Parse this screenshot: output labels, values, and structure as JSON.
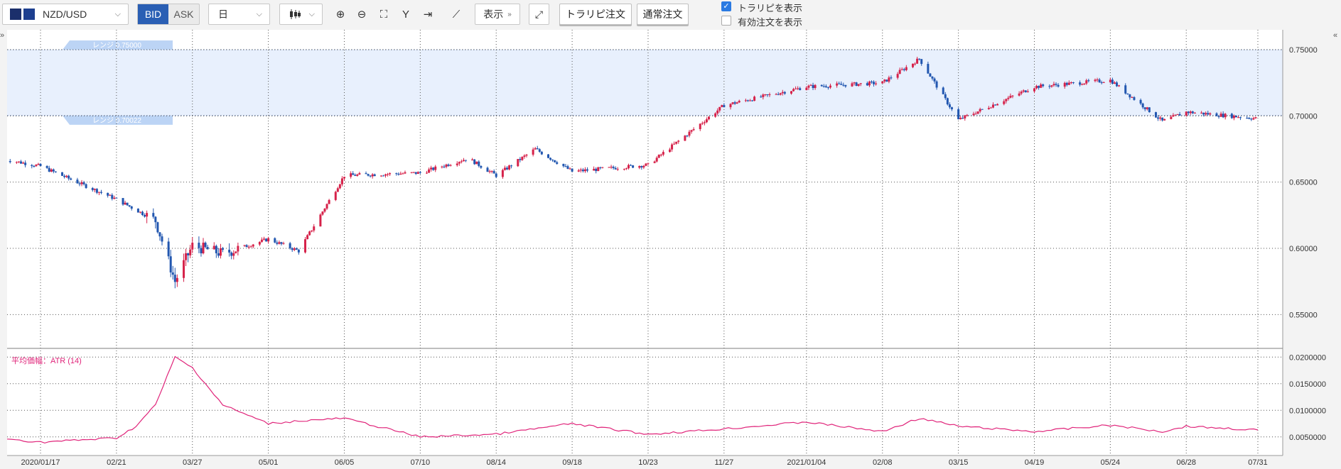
{
  "toolbar": {
    "symbol": "NZD/USD",
    "bid": "BID",
    "ask": "ASK",
    "period": "日",
    "display_label": "表示",
    "trailing_order": "トラリピ注文",
    "normal_order": "通常注文",
    "show_trailing": "トラリピを表示",
    "show_active_orders": "有効注文を表示",
    "show_trailing_checked": true,
    "show_active_orders_checked": false
  },
  "colors": {
    "up": "#d6224a",
    "down": "#2257b0",
    "range_fill": "#e8f0fd",
    "range_label_bg": "#bcd4f5",
    "atr": "#e0247a",
    "grid": "#555555"
  },
  "chart_data": [
    {
      "type": "candlestick",
      "range_band": {
        "upper": 0.75,
        "lower": 0.70022,
        "upper_label": "レンジ 0.75000",
        "lower_label": "レンジ 0.70022"
      },
      "ylim": [
        0.525,
        0.765
      ],
      "y_ticks": [
        "0.75000",
        "0.70000",
        "0.65000",
        "0.60000",
        "0.55000"
      ],
      "x_ticks": [
        "2020/01/17",
        "02/21",
        "03/27",
        "05/01",
        "06/05",
        "07/10",
        "08/14",
        "09/18",
        "10/23",
        "11/27",
        "2021/01/04",
        "02/08",
        "03/15",
        "04/19",
        "05/24",
        "06/28",
        "07/31"
      ],
      "close_path": {
        "x": [
          "2020/01/01",
          "2020/01/17",
          "2020/02/21",
          "2020/03/10",
          "2020/03/19",
          "2020/03/27",
          "2020/04/10",
          "2020/05/01",
          "2020/05/15",
          "2020/06/05",
          "2020/07/10",
          "2020/08/01",
          "2020/08/14",
          "2020/09/01",
          "2020/09/18",
          "2020/10/23",
          "2020/11/27",
          "2021/01/04",
          "2021/02/08",
          "2021/02/25",
          "2021/03/15",
          "2021/04/19",
          "2021/05/24",
          "2021/06/17",
          "2021/06/28",
          "2021/07/31"
        ],
        "y": [
          0.667,
          0.662,
          0.637,
          0.621,
          0.575,
          0.602,
          0.596,
          0.607,
          0.598,
          0.655,
          0.657,
          0.668,
          0.655,
          0.675,
          0.658,
          0.663,
          0.708,
          0.722,
          0.725,
          0.743,
          0.697,
          0.722,
          0.727,
          0.696,
          0.703,
          0.698
        ]
      }
    },
    {
      "type": "line",
      "title": "平均価幅：ATR (14)",
      "ylim": [
        0.0015,
        0.0215
      ],
      "y_ticks": [
        "0.0200000",
        "0.0150000",
        "0.0100000",
        "0.0050000"
      ],
      "series": [
        {
          "x": [
            "2020/01/01",
            "2020/01/17",
            "2020/02/21",
            "2020/03/01",
            "2020/03/10",
            "2020/03/19",
            "2020/03/27",
            "2020/04/10",
            "2020/05/01",
            "2020/05/15",
            "2020/06/05",
            "2020/07/10",
            "2020/08/14",
            "2020/09/18",
            "2020/10/23",
            "2020/11/27",
            "2021/01/04",
            "2021/02/08",
            "2021/02/25",
            "2021/03/15",
            "2021/04/19",
            "2021/05/24",
            "2021/06/17",
            "2021/06/28",
            "2021/07/31"
          ],
          "values": [
            0.0046,
            0.004,
            0.0048,
            0.007,
            0.011,
            0.02,
            0.018,
            0.011,
            0.0075,
            0.008,
            0.0085,
            0.005,
            0.0055,
            0.0075,
            0.0055,
            0.0065,
            0.0078,
            0.006,
            0.0085,
            0.007,
            0.006,
            0.0072,
            0.006,
            0.007,
            0.0063
          ]
        }
      ]
    }
  ]
}
